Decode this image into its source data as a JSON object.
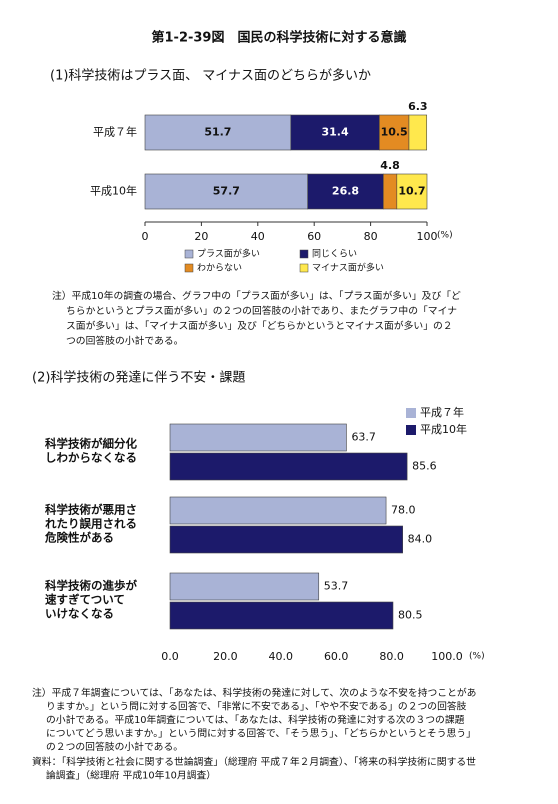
{
  "title": "第1-2-39図　国民の科学技術に対する意識",
  "chart_data": [
    {
      "type": "bar",
      "stacked": true,
      "title": "(1)科学技術はプラス面、 マイナス面のどちらが多いか",
      "categories": [
        "平成７年",
        "平成10年"
      ],
      "series": [
        {
          "name": "プラス面が多い",
          "color": "#a9b3d6",
          "values": [
            51.7,
            57.7
          ]
        },
        {
          "name": "同じくらい",
          "color": "#1c1a6b",
          "values": [
            31.4,
            26.8
          ]
        },
        {
          "name": "わからない",
          "color": "#e38b22",
          "values": [
            10.5,
            4.8
          ]
        },
        {
          "name": "マイナス面が多い",
          "color": "#ffe84d",
          "values": [
            6.3,
            10.7
          ]
        }
      ],
      "xlim": [
        0,
        100
      ],
      "xticks": [
        0,
        20,
        40,
        60,
        80,
        100
      ],
      "x_unit": "(%)"
    },
    {
      "type": "bar",
      "stacked": false,
      "title": "(2)科学技術の発達に伴う不安・課題",
      "categories": [
        [
          "科学技術が細分化",
          "しわからなくなる"
        ],
        [
          "科学技術が悪用さ",
          "れたり誤用される",
          "危険性がある"
        ],
        [
          "科学技術の進歩が",
          "速すぎてついて",
          "いけなくなる"
        ]
      ],
      "series": [
        {
          "name": "平成７年",
          "color": "#a9b3d6",
          "values": [
            63.7,
            78.0,
            53.7
          ],
          "value_labels": [
            "63.7",
            "78.0",
            "53.7"
          ]
        },
        {
          "name": "平成10年",
          "color": "#1c1a6b",
          "values": [
            85.6,
            84.0,
            80.5
          ],
          "value_labels": [
            "85.6",
            "84.0",
            "80.5"
          ]
        }
      ],
      "xlim": [
        0,
        100
      ],
      "xticks": [
        {
          "value": 0,
          "label": "0.0"
        },
        {
          "value": 20,
          "label": "20.0"
        },
        {
          "value": 40,
          "label": "40.0"
        },
        {
          "value": 60,
          "label": "60.0"
        },
        {
          "value": 80,
          "label": "80.0"
        },
        {
          "value": 100,
          "label": "100.0"
        }
      ],
      "x_unit": "(%)"
    }
  ],
  "notes1": [
    "注）平成10年の調査の場合、グラフ中の「プラス面が多い」は、「プラス面が多い」及び「ど",
    "ちらかというとプラス面が多い」の２つの回答肢の小計であり、またグラフ中の「マイナ",
    "ス面が多い」は、「マイナス面が多い」及び「どちらかというとマイナス面が多い」の２",
    "つの回答肢の小計である。"
  ],
  "notes2": [
    "注）平成７年調査については、「あなたは、科学技術の発達に対して、次のような不安を持つことがあ",
    "りますか。」という問に対する回答で、「非常に不安である」、「やや不安である」の２つの回答肢",
    "の小計である。平成10年調査については、「あなたは、科学技術の発達に対する次の３つの課題",
    "についてどう思いますか。」という問に対する回答で、「そう思う」、「どちらかというとそう思う」",
    "の２つの回答肢の小計である。"
  ],
  "source": [
    "資料：「科学技術と社会に関する世論調査」（総理府 平成７年２月調査）、「将来の科学技術に関する世",
    "論調査」（総理府 平成10年10月調査）"
  ]
}
